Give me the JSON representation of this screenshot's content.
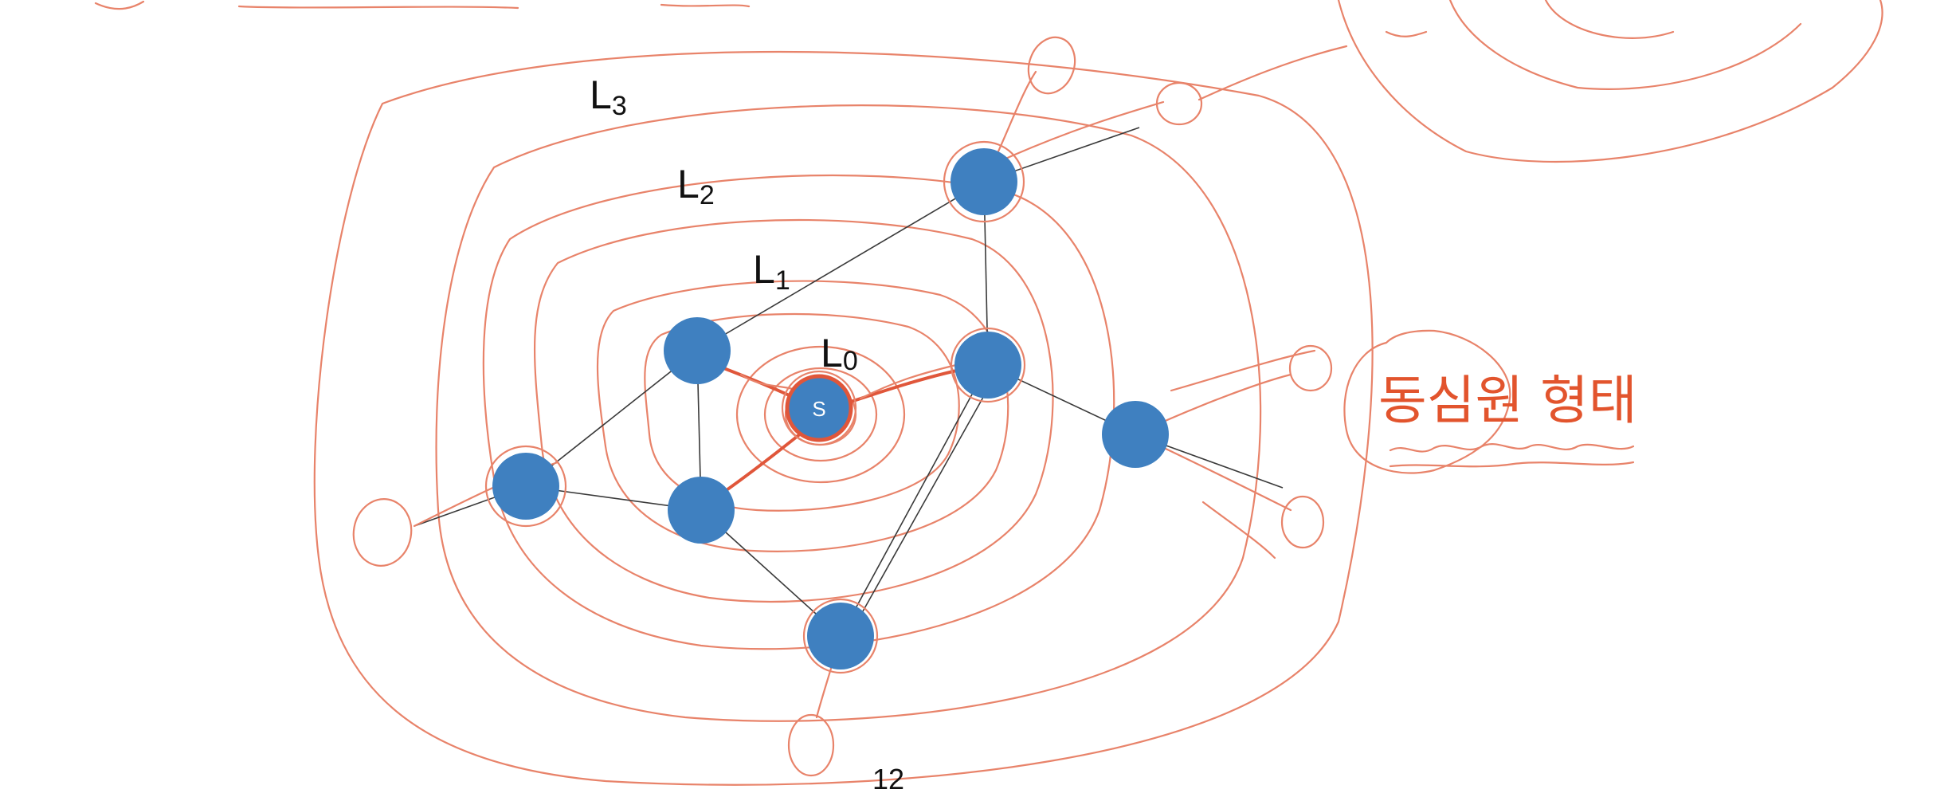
{
  "levels": [
    {
      "base": "L",
      "sub": "3"
    },
    {
      "base": "L",
      "sub": "2"
    },
    {
      "base": "L",
      "sub": "1"
    },
    {
      "base": "L",
      "sub": "0"
    }
  ],
  "source_label": "S",
  "annotation": "동심원 형태",
  "page_number": "12",
  "colors": {
    "node": "#3f80c0",
    "ink": "#e8836a",
    "ink_strong": "#e0563a",
    "annotation": "#e2542d"
  }
}
